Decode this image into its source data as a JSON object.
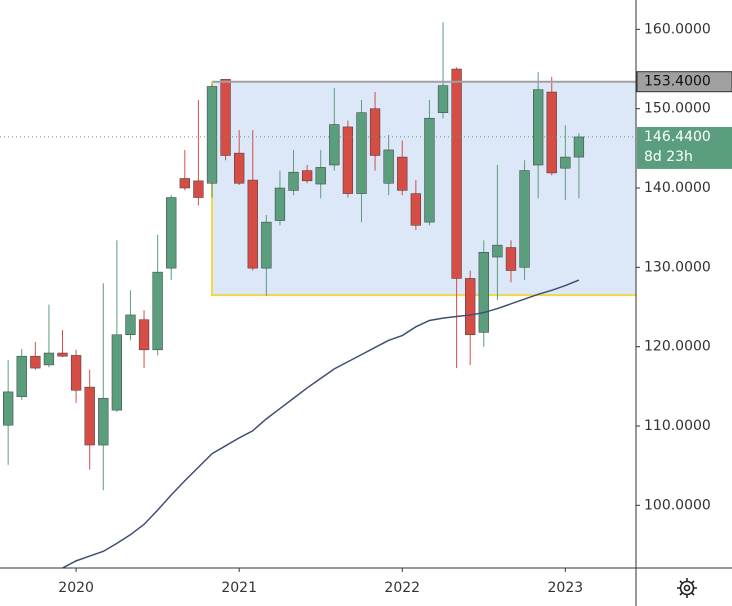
{
  "chart_data": {
    "type": "candlestick",
    "x": [
      0,
      1,
      2,
      3,
      4,
      5,
      6,
      7,
      8,
      9,
      10,
      11,
      12,
      13,
      14,
      15,
      16,
      17,
      18,
      19,
      20,
      21,
      22,
      23,
      24,
      25,
      26,
      27,
      28,
      29,
      30,
      31,
      32,
      33,
      34,
      35,
      36,
      37,
      38,
      39,
      40,
      41,
      42
    ],
    "open": [
      110.1,
      113.7,
      118.8,
      117.7,
      119.2,
      118.9,
      114.9,
      107.6,
      112.0,
      121.5,
      123.4,
      119.6,
      129.9,
      141.2,
      140.9,
      140.6,
      153.7,
      144.4,
      141.0,
      129.9,
      135.9,
      139.7,
      142.2,
      140.5,
      142.9,
      147.7,
      139.3,
      150.0,
      140.6,
      143.9,
      139.3,
      135.7,
      149.5,
      155.0,
      128.6,
      121.8,
      131.3,
      132.5,
      130.0,
      142.9,
      152.1,
      142.5,
      143.9
    ],
    "high": [
      118.3,
      119.7,
      120.6,
      125.3,
      122.1,
      119.6,
      117.1,
      128.0,
      133.4,
      127.1,
      124.6,
      134.1,
      139.1,
      144.8,
      151.1,
      153.1,
      153.7,
      147.3,
      147.3,
      136.6,
      142.2,
      144.8,
      142.9,
      144.8,
      152.6,
      148.5,
      151.1,
      152.1,
      146.7,
      146.0,
      141.0,
      151.1,
      160.9,
      155.2,
      129.6,
      133.4,
      142.9,
      133.4,
      143.5,
      154.6,
      154.0,
      147.9,
      146.9
    ],
    "low": [
      105.1,
      113.3,
      117.1,
      117.4,
      118.7,
      112.9,
      104.5,
      101.9,
      111.8,
      120.8,
      117.3,
      118.9,
      128.4,
      139.7,
      137.8,
      138.8,
      143.5,
      140.4,
      129.6,
      126.4,
      135.3,
      139.1,
      140.6,
      138.7,
      142.2,
      138.8,
      135.7,
      142.2,
      139.1,
      139.1,
      134.7,
      135.3,
      148.8,
      117.3,
      117.7,
      120.0,
      125.9,
      128.1,
      128.4,
      138.7,
      141.6,
      138.5,
      138.7
    ],
    "close": [
      114.3,
      118.8,
      117.3,
      119.2,
      118.8,
      114.5,
      107.6,
      113.5,
      121.5,
      124.0,
      119.6,
      129.4,
      138.8,
      140.0,
      138.8,
      152.8,
      144.1,
      140.6,
      129.9,
      135.7,
      140.0,
      142.0,
      140.9,
      142.6,
      148.0,
      139.3,
      149.5,
      144.1,
      144.8,
      139.7,
      135.3,
      148.8,
      152.9,
      128.6,
      121.5,
      131.9,
      132.8,
      129.6,
      142.2,
      152.4,
      141.9,
      143.9,
      146.44
    ],
    "up_color": "#5a9e7e",
    "down_color": "#d64d45",
    "ma": {
      "color": "#3f4f74",
      "values": [
        null,
        null,
        null,
        null,
        92.1,
        93.0,
        93.6,
        94.2,
        95.2,
        96.3,
        97.6,
        99.4,
        101.3,
        103.1,
        104.8,
        106.5,
        107.5,
        108.5,
        109.4,
        110.9,
        112.2,
        113.5,
        114.8,
        116.0,
        117.2,
        118.1,
        119.0,
        119.9,
        120.8,
        121.4,
        122.5,
        123.3,
        123.6,
        123.8,
        124.0,
        124.3,
        124.8,
        125.4,
        126.0,
        126.6,
        127.1,
        127.7,
        128.4
      ]
    },
    "rectangle": {
      "x_start": 15,
      "top": 153.4,
      "bottom": 126.5,
      "fill": "#d6e3f7",
      "edge_color": "#f2d64b"
    },
    "xlim": [
      -0.6,
      46.2
    ],
    "ylim": [
      92.1,
      163.7
    ],
    "xticks": [
      {
        "value": 5,
        "label": "2020"
      },
      {
        "value": 17,
        "label": "2021"
      },
      {
        "value": 29,
        "label": "2022"
      },
      {
        "value": 41,
        "label": "2023"
      }
    ],
    "yticks": [
      {
        "value": 100,
        "label": "100.0000"
      },
      {
        "value": 110,
        "label": "110.0000"
      },
      {
        "value": 120,
        "label": "120.0000"
      },
      {
        "value": 130,
        "label": "130.0000"
      },
      {
        "value": 140,
        "label": "140.0000"
      },
      {
        "value": 150,
        "label": "150.0000"
      },
      {
        "value": 160,
        "label": "160.0000"
      }
    ],
    "price_labels": [
      {
        "value": 153.4,
        "label": "153.4000",
        "color": "#a0a0a0"
      },
      {
        "value": 146.44,
        "label": "146.4400",
        "countdown": "8d 23h",
        "color": "#5a9e7e"
      }
    ]
  }
}
